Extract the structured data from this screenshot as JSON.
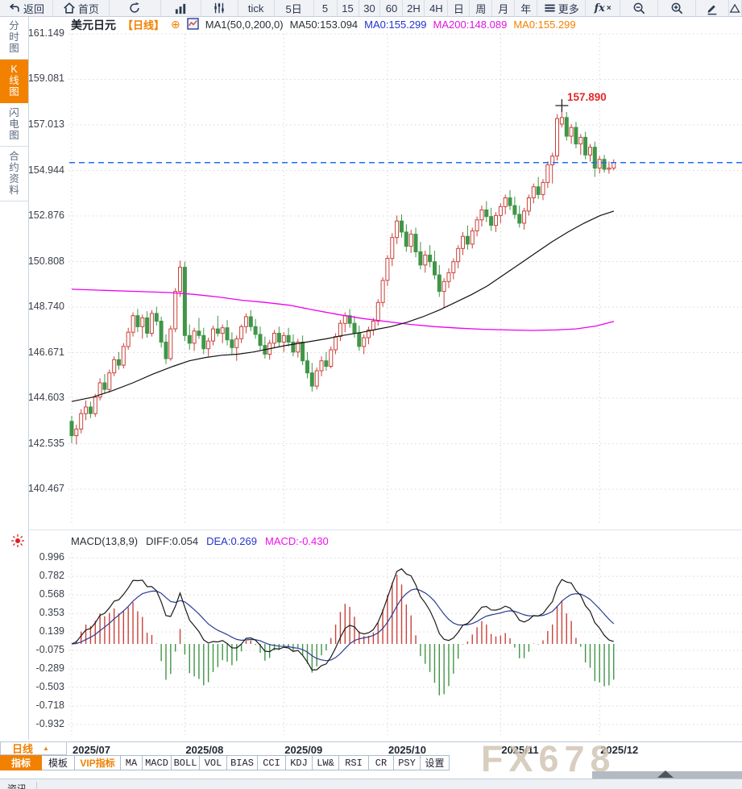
{
  "app": {
    "watermark": "FX678"
  },
  "top_toolbar": {
    "items": [
      {
        "name": "back",
        "label": "返回",
        "icon": "back"
      },
      {
        "name": "home",
        "label": "首页",
        "icon": "home"
      },
      {
        "name": "refresh",
        "icon": "refresh"
      },
      {
        "name": "chart-style",
        "icon": "bars"
      },
      {
        "name": "indicator-settings",
        "icon": "sliders"
      },
      {
        "name": "interval-tick",
        "label": "tick"
      },
      {
        "name": "interval-5d",
        "label": "5日"
      },
      {
        "name": "interval-5m",
        "label": "5"
      },
      {
        "name": "interval-15m",
        "label": "15"
      },
      {
        "name": "interval-30m",
        "label": "30"
      },
      {
        "name": "interval-60m",
        "label": "60"
      },
      {
        "name": "interval-2h",
        "label": "2H"
      },
      {
        "name": "interval-4h",
        "label": "4H"
      },
      {
        "name": "interval-day",
        "label": "日"
      },
      {
        "name": "interval-week",
        "label": "周"
      },
      {
        "name": "interval-month",
        "label": "月"
      },
      {
        "name": "interval-year",
        "label": "年"
      },
      {
        "name": "more-menu",
        "label": "更多",
        "icon": "menu"
      },
      {
        "name": "fx-indicators",
        "label": "fx"
      },
      {
        "name": "zoom-out",
        "icon": "zoomout"
      },
      {
        "name": "zoom-in",
        "icon": "zoomin"
      },
      {
        "name": "draw-pencil",
        "icon": "pencil"
      },
      {
        "name": "draw-shape",
        "icon": "shape"
      }
    ]
  },
  "sidebar": {
    "tabs": [
      {
        "label": "分时图",
        "active": false
      },
      {
        "label": "K线图",
        "active": true
      },
      {
        "label": "闪电图",
        "active": false
      },
      {
        "label": "合约资料",
        "active": false
      }
    ]
  },
  "main_chart": {
    "title": "美元日元",
    "period_tag": "【日线】",
    "add_icon": "⊕",
    "ma_def": "MA1(50,0,200,0)",
    "ma50": "MA50:153.094",
    "ma0_blue": "MA0:155.299",
    "ma200": "MA200:148.089",
    "ma0_orange": "MA0:155.299",
    "peak_annotation": "157.890"
  },
  "macd_panel": {
    "def": "MACD(13,8,9)",
    "diff": "DIFF:0.054",
    "dea": "DEA:0.269",
    "macd": "MACD:-0.430"
  },
  "x_axis": {
    "period_button": "日线",
    "caret": "▲"
  },
  "bottom_toolbar": {
    "tabs": [
      {
        "label": "指标",
        "active": true
      },
      {
        "label": "模板"
      },
      {
        "label": "VIP指标",
        "vip": true
      },
      {
        "label": "MA"
      },
      {
        "label": "MACD"
      },
      {
        "label": "BOLL"
      },
      {
        "label": "VOL"
      },
      {
        "label": "BIAS"
      },
      {
        "label": "CCI"
      },
      {
        "label": "KDJ"
      },
      {
        "label": "LW&"
      },
      {
        "label": "RSI"
      },
      {
        "label": "CR"
      },
      {
        "label": "PSY"
      },
      {
        "label": "设置"
      }
    ]
  },
  "status_bar": {
    "news_label": "资讯"
  },
  "colors": {
    "up": "#c9413a",
    "down": "#3f9647",
    "ma50": "#111111",
    "ma200": "#ee00ee",
    "diff": "#1a1a1a",
    "dea": "#2b3d94",
    "price_line": "#1e6ef5",
    "accent": "#f28100",
    "grid": "#ddd3d8",
    "annotation": "#e02a2a",
    "watermark": "#cfc2b0"
  },
  "chart_data": {
    "type": "candlestick",
    "symbol": "美元日元",
    "period": "日线",
    "title": "USD/JPY daily candlestick with MA50, MA200 and MACD(13,8,9)",
    "ylim_main": [
      140.467,
      161.149
    ],
    "ylim_macd": [
      -0.932,
      0.996
    ],
    "y_ticks_main": [
      "161.149",
      "159.081",
      "157.013",
      "154.944",
      "152.876",
      "150.808",
      "148.740",
      "146.671",
      "144.603",
      "142.535",
      "140.467"
    ],
    "y_ticks_macd": [
      "0.996",
      "0.782",
      "0.568",
      "0.353",
      "0.139",
      "-0.075",
      "-0.289",
      "-0.503",
      "-0.718",
      "-0.932"
    ],
    "months": [
      {
        "label": "2025/07",
        "start_index": 0
      },
      {
        "label": "2025/08",
        "start_index": 24
      },
      {
        "label": "2025/09",
        "start_index": 45
      },
      {
        "label": "2025/10",
        "start_index": 67
      },
      {
        "label": "2025/11",
        "start_index": 91
      },
      {
        "label": "2025/12",
        "start_index": 112
      }
    ],
    "current_price": 155.299,
    "peak": {
      "index": 104,
      "price": 157.89,
      "label": "157.890"
    },
    "macd_values": {
      "diff": 0.054,
      "dea": 0.269,
      "macd": -0.43
    },
    "ma_values": {
      "ma50": 153.094,
      "ma200": 148.089,
      "ma0": 155.299
    },
    "candles": [
      [
        143.55,
        143.8,
        142.55,
        142.9
      ],
      [
        142.9,
        143.4,
        142.5,
        143.2
      ],
      [
        143.2,
        144.1,
        143.0,
        143.9
      ],
      [
        143.9,
        144.5,
        143.6,
        144.2
      ],
      [
        144.2,
        144.45,
        143.7,
        143.9
      ],
      [
        143.9,
        144.8,
        143.75,
        144.65
      ],
      [
        144.65,
        145.5,
        144.5,
        145.3
      ],
      [
        145.3,
        145.7,
        144.8,
        145.0
      ],
      [
        145.0,
        145.9,
        144.85,
        145.75
      ],
      [
        145.75,
        146.5,
        145.6,
        146.35
      ],
      [
        146.35,
        146.7,
        145.9,
        146.1
      ],
      [
        146.1,
        147.1,
        145.95,
        146.95
      ],
      [
        146.95,
        147.8,
        146.8,
        147.6
      ],
      [
        147.6,
        148.5,
        147.4,
        148.35
      ],
      [
        148.35,
        148.65,
        147.6,
        147.85
      ],
      [
        147.85,
        148.4,
        147.3,
        148.25
      ],
      [
        148.25,
        148.55,
        147.35,
        147.55
      ],
      [
        147.55,
        148.6,
        147.4,
        148.45
      ],
      [
        148.45,
        148.75,
        147.9,
        148.1
      ],
      [
        148.1,
        148.3,
        146.9,
        147.15
      ],
      [
        147.15,
        147.5,
        146.15,
        146.4
      ],
      [
        146.4,
        147.9,
        146.3,
        147.75
      ],
      [
        147.75,
        149.6,
        147.6,
        149.45
      ],
      [
        149.45,
        150.85,
        149.2,
        150.55
      ],
      [
        150.55,
        150.8,
        147.2,
        147.45
      ],
      [
        147.45,
        147.95,
        146.8,
        147.1
      ],
      [
        147.1,
        147.8,
        146.75,
        147.65
      ],
      [
        147.65,
        148.25,
        147.3,
        147.45
      ],
      [
        147.45,
        147.8,
        146.6,
        146.85
      ],
      [
        146.85,
        147.35,
        146.5,
        147.2
      ],
      [
        147.2,
        147.9,
        147.0,
        147.75
      ],
      [
        147.75,
        148.35,
        147.4,
        147.55
      ],
      [
        147.55,
        147.95,
        147.1,
        147.8
      ],
      [
        147.8,
        148.15,
        147.0,
        147.25
      ],
      [
        147.25,
        147.6,
        146.6,
        146.9
      ],
      [
        146.9,
        147.45,
        146.3,
        147.3
      ],
      [
        147.3,
        147.95,
        147.1,
        147.85
      ],
      [
        147.85,
        148.45,
        147.55,
        148.3
      ],
      [
        148.3,
        148.6,
        147.65,
        147.85
      ],
      [
        147.85,
        148.2,
        147.3,
        147.5
      ],
      [
        147.5,
        147.85,
        146.8,
        147.0
      ],
      [
        147.0,
        147.4,
        146.4,
        146.6
      ],
      [
        146.6,
        147.25,
        146.35,
        147.1
      ],
      [
        147.1,
        147.7,
        146.9,
        147.55
      ],
      [
        147.55,
        147.85,
        146.95,
        147.15
      ],
      [
        147.15,
        147.6,
        146.7,
        147.45
      ],
      [
        147.45,
        147.8,
        146.95,
        147.15
      ],
      [
        147.15,
        147.5,
        146.5,
        146.7
      ],
      [
        146.7,
        147.3,
        146.45,
        147.15
      ],
      [
        147.15,
        147.45,
        146.1,
        146.3
      ],
      [
        146.3,
        146.7,
        145.5,
        145.75
      ],
      [
        145.75,
        146.2,
        144.9,
        145.15
      ],
      [
        145.15,
        146.0,
        145.0,
        145.85
      ],
      [
        145.85,
        146.5,
        145.6,
        146.3
      ],
      [
        146.3,
        146.7,
        145.85,
        146.05
      ],
      [
        146.05,
        146.95,
        145.95,
        146.8
      ],
      [
        146.8,
        147.55,
        146.6,
        147.4
      ],
      [
        147.4,
        148.15,
        147.2,
        148.0
      ],
      [
        148.0,
        148.5,
        147.6,
        148.35
      ],
      [
        148.35,
        148.65,
        147.8,
        148.0
      ],
      [
        148.0,
        148.35,
        147.35,
        147.55
      ],
      [
        147.55,
        147.9,
        146.75,
        146.95
      ],
      [
        146.95,
        147.5,
        146.6,
        147.35
      ],
      [
        147.35,
        147.85,
        147.05,
        147.7
      ],
      [
        147.7,
        148.25,
        147.45,
        148.1
      ],
      [
        148.1,
        149.1,
        147.9,
        148.95
      ],
      [
        148.95,
        150.1,
        148.75,
        149.95
      ],
      [
        149.95,
        151.1,
        149.7,
        150.95
      ],
      [
        150.95,
        152.1,
        150.6,
        151.9
      ],
      [
        151.9,
        152.9,
        151.6,
        152.65
      ],
      [
        152.65,
        152.95,
        151.9,
        152.15
      ],
      [
        152.15,
        152.5,
        151.25,
        151.5
      ],
      [
        151.5,
        152.25,
        151.2,
        152.05
      ],
      [
        152.05,
        152.35,
        151.0,
        151.25
      ],
      [
        151.25,
        151.7,
        150.45,
        150.65
      ],
      [
        150.65,
        151.3,
        150.3,
        151.1
      ],
      [
        151.1,
        151.55,
        150.55,
        150.8
      ],
      [
        150.8,
        151.3,
        150.0,
        150.2
      ],
      [
        150.2,
        150.65,
        149.2,
        149.45
      ],
      [
        149.45,
        150.05,
        148.7,
        149.9
      ],
      [
        149.9,
        150.5,
        149.6,
        150.3
      ],
      [
        150.3,
        150.95,
        150.0,
        150.8
      ],
      [
        150.8,
        151.55,
        150.5,
        151.4
      ],
      [
        151.4,
        152.15,
        151.1,
        151.95
      ],
      [
        151.95,
        152.45,
        151.35,
        151.6
      ],
      [
        151.6,
        152.35,
        151.4,
        152.2
      ],
      [
        152.2,
        152.85,
        151.95,
        152.7
      ],
      [
        152.7,
        153.35,
        152.4,
        153.15
      ],
      [
        153.15,
        153.55,
        152.6,
        152.85
      ],
      [
        152.85,
        153.25,
        152.2,
        152.45
      ],
      [
        152.45,
        153.05,
        152.15,
        152.9
      ],
      [
        152.9,
        153.45,
        152.55,
        153.3
      ],
      [
        153.3,
        153.85,
        152.95,
        153.7
      ],
      [
        153.7,
        154.05,
        153.15,
        153.35
      ],
      [
        153.35,
        153.75,
        152.75,
        152.95
      ],
      [
        152.95,
        153.35,
        152.35,
        152.55
      ],
      [
        152.55,
        153.25,
        152.25,
        153.1
      ],
      [
        153.1,
        153.85,
        152.9,
        153.7
      ],
      [
        153.7,
        154.35,
        153.45,
        154.2
      ],
      [
        154.2,
        154.65,
        153.65,
        153.85
      ],
      [
        153.85,
        154.55,
        153.6,
        154.4
      ],
      [
        154.4,
        155.35,
        154.15,
        155.2
      ],
      [
        155.2,
        155.75,
        154.35,
        155.6
      ],
      [
        155.6,
        157.5,
        155.4,
        157.3
      ],
      [
        157.05,
        157.89,
        156.9,
        157.35
      ],
      [
        157.35,
        157.6,
        156.3,
        156.5
      ],
      [
        156.5,
        157.05,
        156.15,
        156.9
      ],
      [
        156.9,
        157.15,
        155.95,
        156.15
      ],
      [
        156.15,
        156.6,
        155.65,
        156.45
      ],
      [
        156.45,
        156.7,
        155.45,
        155.65
      ],
      [
        155.65,
        156.15,
        155.35,
        156.0
      ],
      [
        156.0,
        156.25,
        154.65,
        155.05
      ],
      [
        155.05,
        155.6,
        154.8,
        155.45
      ],
      [
        155.45,
        155.65,
        154.85,
        155.0
      ],
      [
        155.0,
        155.35,
        154.8,
        155.05
      ],
      [
        155.05,
        155.45,
        154.95,
        155.3
      ]
    ],
    "ma50_points": [
      [
        89,
        144.45
      ],
      [
        115,
        144.65
      ],
      [
        140,
        144.95
      ],
      [
        165,
        145.3
      ],
      [
        190,
        145.7
      ],
      [
        215,
        146.05
      ],
      [
        235,
        146.3
      ],
      [
        255,
        146.45
      ],
      [
        275,
        146.55
      ],
      [
        295,
        146.6
      ],
      [
        315,
        146.7
      ],
      [
        335,
        146.85
      ],
      [
        355,
        147.0
      ],
      [
        380,
        147.15
      ],
      [
        405,
        147.3
      ],
      [
        425,
        147.45
      ],
      [
        450,
        147.6
      ],
      [
        470,
        147.75
      ],
      [
        485,
        147.85
      ],
      [
        505,
        148.05
      ],
      [
        525,
        148.3
      ],
      [
        545,
        148.6
      ],
      [
        565,
        148.95
      ],
      [
        585,
        149.3
      ],
      [
        605,
        149.7
      ],
      [
        625,
        150.2
      ],
      [
        645,
        150.7
      ],
      [
        665,
        151.2
      ],
      [
        685,
        151.7
      ],
      [
        705,
        152.15
      ],
      [
        725,
        152.55
      ],
      [
        745,
        152.9
      ],
      [
        762,
        153.1
      ]
    ],
    "ma200_points": [
      [
        89,
        149.55
      ],
      [
        130,
        149.5
      ],
      [
        170,
        149.45
      ],
      [
        210,
        149.4
      ],
      [
        240,
        149.32
      ],
      [
        270,
        149.2
      ],
      [
        300,
        149.05
      ],
      [
        330,
        148.95
      ],
      [
        360,
        148.82
      ],
      [
        390,
        148.6
      ],
      [
        420,
        148.4
      ],
      [
        450,
        148.22
      ],
      [
        480,
        148.08
      ],
      [
        510,
        147.95
      ],
      [
        540,
        147.85
      ],
      [
        570,
        147.78
      ],
      [
        600,
        147.73
      ],
      [
        630,
        147.7
      ],
      [
        660,
        147.68
      ],
      [
        690,
        147.7
      ],
      [
        715,
        147.75
      ],
      [
        740,
        147.88
      ],
      [
        762,
        148.09
      ]
    ]
  }
}
